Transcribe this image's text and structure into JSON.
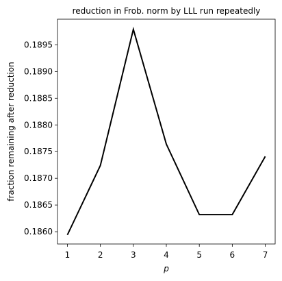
{
  "chart_data": {
    "type": "line",
    "title": "reduction in Frob. norm by LLL run repeatedly",
    "x_label": "p",
    "y_label": "fraction remaining after reduction",
    "x": [
      1,
      2,
      3,
      4,
      5,
      6,
      7
    ],
    "series": [
      {
        "name": null,
        "color": "#000000",
        "values": [
          0.18594,
          0.18724,
          0.18979,
          0.18764,
          0.18632,
          0.18632,
          0.18741
        ]
      }
    ],
    "xlim": [
      0.7,
      7.3
    ],
    "ylim": [
      0.18577,
      0.18998
    ],
    "xticks": [
      1,
      2,
      3,
      4,
      5,
      6,
      7
    ],
    "yticks": [
      {
        "value": 0.186,
        "label": "0.1860"
      },
      {
        "value": 0.1865,
        "label": "0.1865"
      },
      {
        "value": 0.187,
        "label": "0.1870"
      },
      {
        "value": 0.1875,
        "label": "0.1875"
      },
      {
        "value": 0.188,
        "label": "0.1880"
      },
      {
        "value": 0.1885,
        "label": "0.1885"
      },
      {
        "value": 0.189,
        "label": "0.1890"
      },
      {
        "value": 0.1895,
        "label": "0.1895"
      }
    ],
    "grid": false
  }
}
